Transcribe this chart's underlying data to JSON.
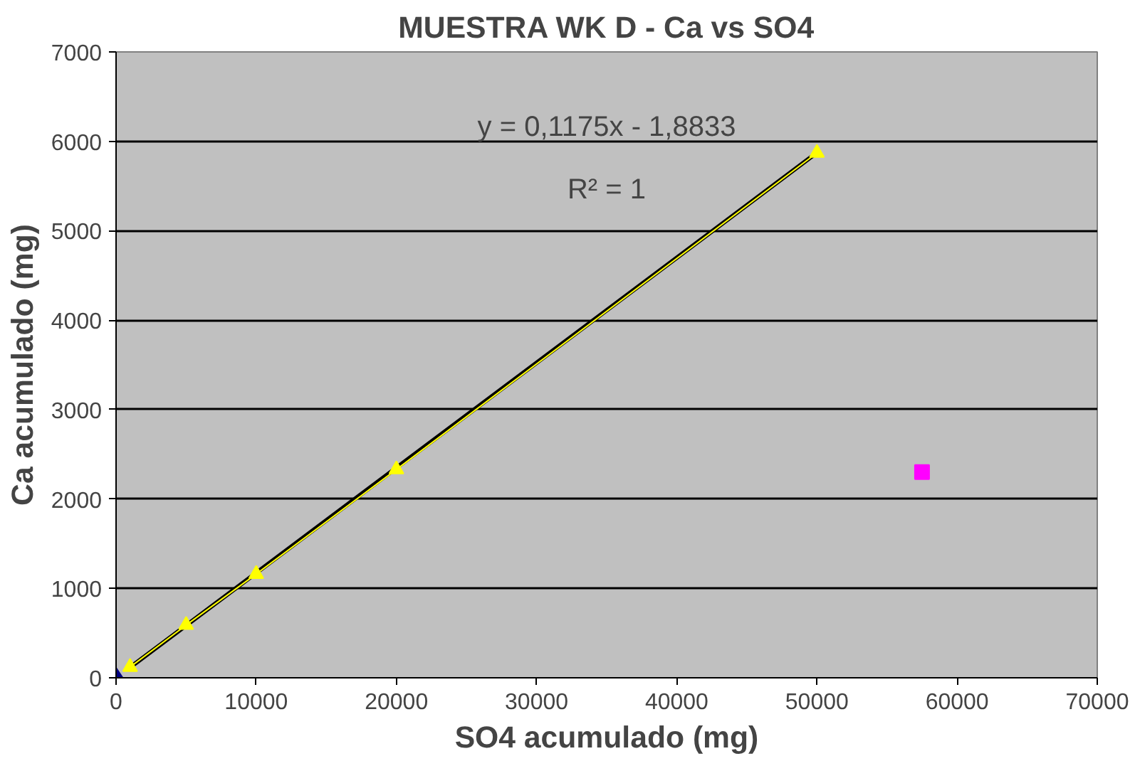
{
  "chart_data": {
    "type": "scatter",
    "title": "MUESTRA WK D - Ca vs SO4",
    "xlabel": "SO4 acumulado (mg)",
    "ylabel": "Ca acumulado (mg)",
    "xlim": [
      0,
      70000
    ],
    "ylim": [
      0,
      7000
    ],
    "xticks": [
      0,
      10000,
      20000,
      30000,
      40000,
      50000,
      60000,
      70000
    ],
    "yticks": [
      0,
      1000,
      2000,
      3000,
      4000,
      5000,
      6000,
      7000
    ],
    "grid": "y",
    "series": [
      {
        "type": "line",
        "color": "#000000",
        "x": [
          1000,
          50000
        ],
        "values": [
          116,
          5873
        ]
      },
      {
        "marker": "diamond",
        "color": "#000080",
        "x": [
          0
        ],
        "values": [
          0
        ]
      },
      {
        "type": "line",
        "marker": "triangle",
        "color": "#ffff00",
        "x": [
          1000,
          5000,
          10000,
          20000,
          50000
        ],
        "values": [
          120,
          590,
          1160,
          2330,
          5870
        ]
      },
      {
        "marker": "square",
        "color": "#ff00ff",
        "x": [
          57500
        ],
        "values": [
          2300
        ]
      }
    ],
    "annotations": [
      "y = 0,1175x - 1,8833",
      "R² = 1"
    ]
  }
}
